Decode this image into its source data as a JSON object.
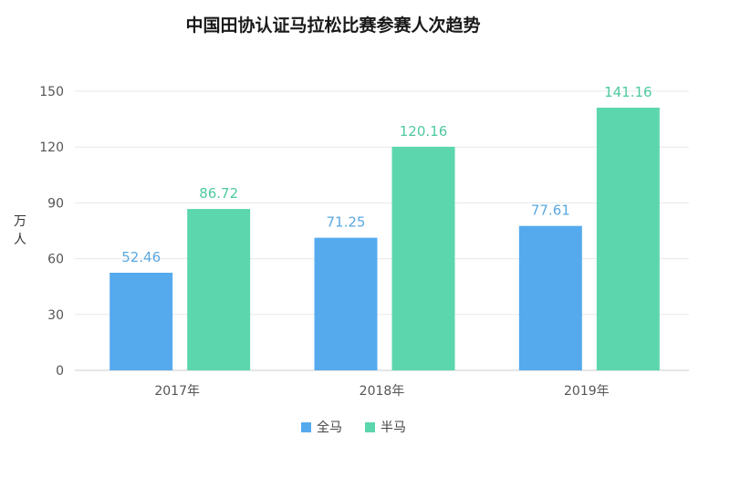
{
  "chart_data": {
    "type": "bar",
    "title": "中国田协认证马拉松比赛参赛人次趋势",
    "ylabel": "万人",
    "xlabel": "",
    "categories": [
      "2017年",
      "2018年",
      "2019年"
    ],
    "series": [
      {
        "name": "全马",
        "values": [
          52.46,
          71.25,
          77.61
        ],
        "color": "#55aaee"
      },
      {
        "name": "半马",
        "values": [
          86.72,
          120.16,
          141.16
        ],
        "color": "#5cd6ad"
      }
    ],
    "ylim": [
      0,
      150
    ],
    "yticks": [
      0,
      30,
      60,
      90,
      120,
      150
    ],
    "grid": true,
    "legend_position": "bottom",
    "data_labels": true,
    "label_colors": {
      "全马": "#5aa8e0",
      "半马": "#4ec9a0"
    }
  }
}
